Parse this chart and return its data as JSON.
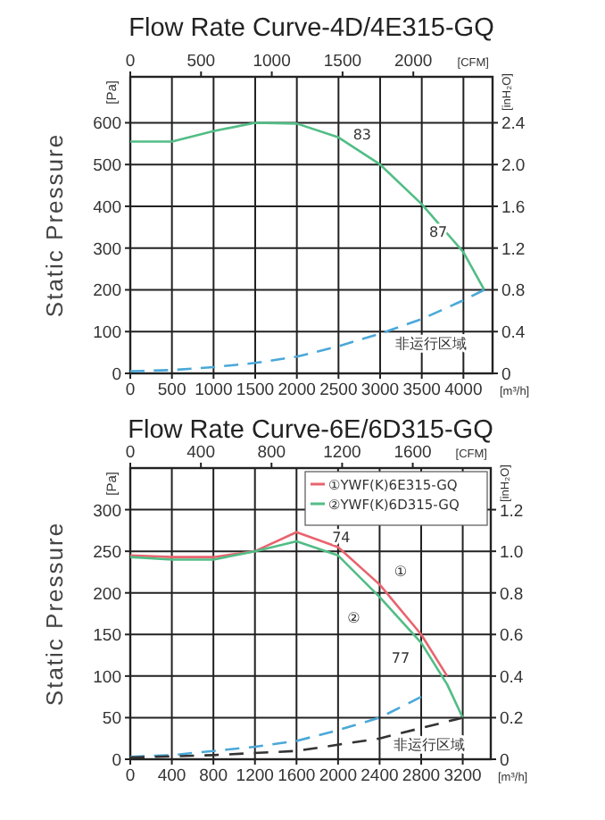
{
  "chart_data": [
    {
      "type": "line",
      "title": "Flow Rate Curve-4D/4E315-GQ",
      "xlabel": "[m³/h]",
      "x2label": "[CFM]",
      "ylabel": "Static Pressure",
      "y2label": "[inH₂O]",
      "xlim": [
        0,
        4350
      ],
      "xticks": [
        0,
        500,
        1000,
        1500,
        2000,
        2500,
        3000,
        3500,
        4000
      ],
      "x2lim": [
        0,
        2560
      ],
      "x2ticks": [
        0,
        500,
        1000,
        1500,
        2000
      ],
      "ylim": [
        0,
        710
      ],
      "yticks": [
        0,
        100,
        200,
        300,
        400,
        500,
        600
      ],
      "y2lim": [
        0,
        2.84
      ],
      "y2ticks": [
        0,
        0.4,
        0.8,
        1.2,
        1.6,
        {
          "value": 2,
          "label": "2.0"
        },
        2.4
      ],
      "grid": true,
      "legend": false,
      "series": [
        {
          "color": "#52bd86",
          "line_style": "solid",
          "x": [
            0,
            500,
            1000,
            1500,
            2000,
            2500,
            3000,
            3500,
            4000,
            4250
          ],
          "values": [
            555,
            555,
            580,
            600,
            598,
            565,
            500,
            405,
            290,
            200
          ]
        },
        {
          "color": "#4aa8d8",
          "line_style": "dashed",
          "x": [
            0,
            500,
            1000,
            1500,
            2000,
            2500,
            3000,
            3500,
            4000,
            4250
          ],
          "values": [
            5,
            8,
            15,
            25,
            40,
            65,
            95,
            130,
            175,
            200
          ]
        }
      ],
      "annotations": [
        "[Pa]",
        "83",
        "87",
        "非运行区域"
      ]
    },
    {
      "type": "line",
      "title": "Flow Rate Curve-6E/6D315-GQ",
      "xlabel": "[m³/h]",
      "x2label": "[CFM]",
      "ylabel": "Static Pressure",
      "y2label": "[inH₂O]",
      "xlim": [
        0,
        3470
      ],
      "xticks": [
        0,
        400,
        800,
        1200,
        1600,
        2000,
        2400,
        2800,
        3200
      ],
      "x2lim": [
        0,
        2042
      ],
      "x2ticks": [
        0,
        400,
        800,
        1200,
        1600
      ],
      "ylim": [
        0,
        350
      ],
      "yticks": [
        0,
        50,
        100,
        150,
        200,
        250,
        300
      ],
      "y2lim": [
        0,
        1.4
      ],
      "y2ticks": [
        0,
        0.2,
        0.4,
        0.6,
        0.8,
        {
          "value": 1,
          "label": "1.0"
        },
        1.2
      ],
      "grid": true,
      "legend": "top right",
      "series": [
        {
          "name": "①YWF(K)6E315-GQ",
          "color": "#e8646e",
          "line_style": "solid",
          "x": [
            0,
            400,
            800,
            1200,
            1600,
            2000,
            2400,
            2800,
            3050
          ],
          "values": [
            245,
            243,
            243,
            250,
            273,
            255,
            210,
            150,
            100
          ]
        },
        {
          "name": "②YWF(K)6D315-GQ",
          "color": "#52bd86",
          "line_style": "solid",
          "x": [
            0,
            400,
            800,
            1200,
            1600,
            2000,
            2400,
            2800,
            3050,
            3200
          ],
          "values": [
            243,
            240,
            240,
            250,
            262,
            245,
            195,
            140,
            90,
            50
          ]
        },
        {
          "color": "#4aa8d8",
          "line_style": "dashed",
          "x": [
            0,
            400,
            800,
            1200,
            1600,
            2000,
            2400,
            2800
          ],
          "values": [
            3,
            5,
            10,
            15,
            22,
            35,
            50,
            75
          ]
        },
        {
          "color": "#333333",
          "line_style": "dashed",
          "x": [
            0,
            800,
            1600,
            2400,
            3200
          ],
          "values": [
            2,
            5,
            10,
            25,
            50
          ]
        }
      ],
      "annotations": [
        "[Pa]",
        "74",
        "77",
        "①",
        "②",
        "非运行区域"
      ]
    }
  ]
}
